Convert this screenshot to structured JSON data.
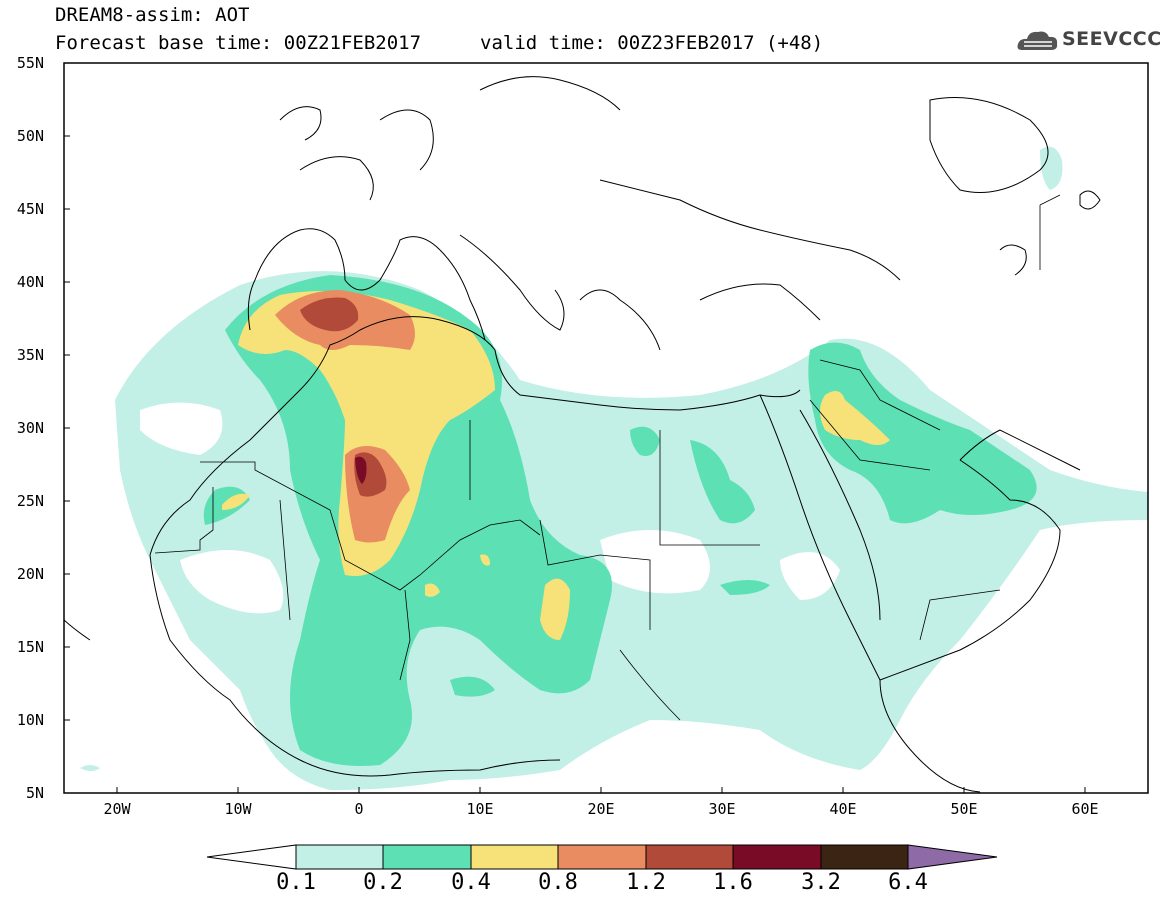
{
  "header": {
    "title": "DREAM8-assim: AOT",
    "base_time": "Forecast base time: 00Z21FEB2017",
    "valid_time": "valid time: 00Z23FEB2017 (+48)",
    "logo_text": "SEEVCCC"
  },
  "map": {
    "lat_labels": [
      "55N",
      "50N",
      "45N",
      "40N",
      "35N",
      "30N",
      "25N",
      "20N",
      "15N",
      "10N",
      "5N"
    ],
    "lon_labels": [
      "20W",
      "10W",
      "0",
      "10E",
      "20E",
      "30E",
      "40E",
      "50E",
      "60E"
    ],
    "field": "AOT",
    "region": "North Africa, Europe and Middle East"
  },
  "colorbar": {
    "labels": [
      "0.1",
      "0.2",
      "0.4",
      "0.8",
      "1.2",
      "1.6",
      "3.2",
      "6.4"
    ],
    "colors": [
      "#ffffff",
      "#c2efe6",
      "#5de0b4",
      "#f7e27a",
      "#e98c62",
      "#b24a3a",
      "#7a0b26",
      "#3b2414",
      "#8e6aa6"
    ]
  },
  "colors": {
    "level1": "#c2efe6",
    "level2": "#5de0b4",
    "level3": "#f7e27a",
    "level4": "#e98c62",
    "level5": "#b24a3a",
    "level6": "#7a0b26"
  }
}
